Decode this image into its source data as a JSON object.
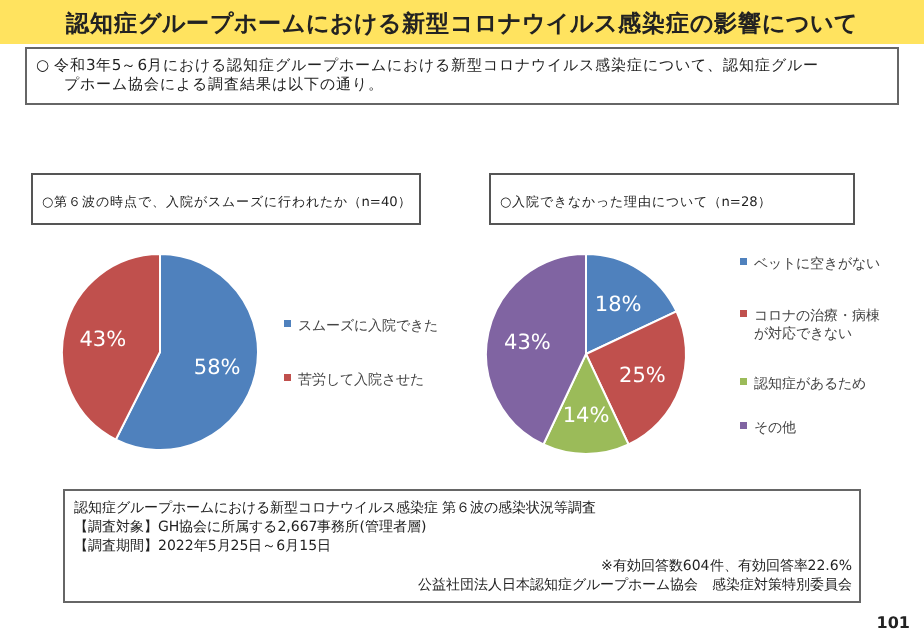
{
  "chart_data": [
    {
      "type": "pie",
      "title": "○第６波の時点で、入院がスムーズに行われたか（n=40）",
      "categories": [
        "スムーズに入院できた",
        "苦労して入院させた"
      ],
      "values": [
        58,
        43
      ],
      "colors": [
        "#4f81bd",
        "#c0504d"
      ],
      "value_labels": [
        "58%",
        "43%"
      ],
      "legend": "right",
      "annotations": [
        "認知症グループホームにおける新型コロナウイルス感染症の影響について",
        "○  令和3年5～6月における認知症グループホームにおける新型コロナウイルス感染症について、認知症グループホーム協会による調査結果は以下の通り。",
        "認知症グループホームにおける新型コロナウイルス感染症 第６波の感染状況等調査",
        "【調査対象】GH協会に所属する2,667事務所(管理者層)",
        "【調査期間】2022年5月25日～6月15日",
        "※有効回答数604件、有効回答率22.6%",
        "公益社団法人日本認知症グループホーム協会　感染症対策特別委員会",
        "101"
      ]
    },
    {
      "type": "pie",
      "title": "○入院できなかった理由について（n=28）",
      "categories": [
        "ベットに空きがない",
        "コロナの治療・病棟が対応できない",
        "認知症があるため",
        "その他"
      ],
      "values": [
        18,
        25,
        14,
        43
      ],
      "colors": [
        "#4f81bd",
        "#c0504d",
        "#9bbb59",
        "#8064a2"
      ],
      "value_labels": [
        "18%",
        "25%",
        "14%",
        "43%"
      ],
      "legend": "right"
    }
  ]
}
